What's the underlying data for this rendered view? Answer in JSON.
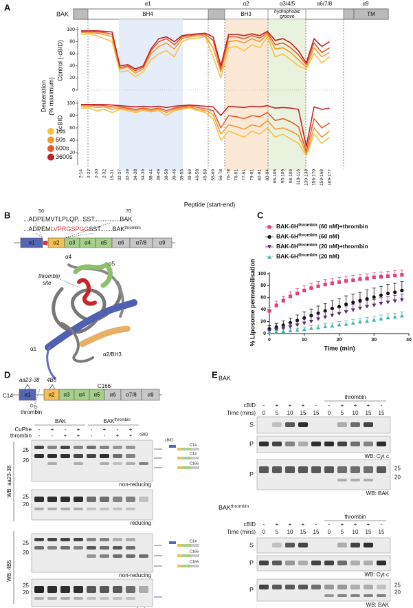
{
  "chart_data": [
    {
      "type": "line",
      "ylabel": "Control (-cBID)",
      "ylim": [
        0,
        100
      ],
      "yticks": [
        0,
        20,
        40,
        60,
        80,
        100
      ],
      "series": [
        {
          "color": "#f6c244",
          "values": [
            92,
            93,
            90,
            85,
            80,
            30,
            32,
            22,
            30,
            50,
            60,
            65,
            55,
            80,
            85,
            86,
            88,
            55,
            20,
            70,
            72,
            65,
            75,
            70,
            88,
            55,
            60,
            50,
            40,
            35,
            60,
            45,
            55
          ]
        },
        {
          "color": "#f49a30",
          "values": [
            95,
            95,
            94,
            92,
            88,
            35,
            38,
            28,
            35,
            60,
            72,
            78,
            68,
            85,
            88,
            90,
            90,
            70,
            30,
            80,
            82,
            78,
            85,
            80,
            92,
            68,
            70,
            62,
            50,
            38,
            70,
            55,
            62
          ]
        },
        {
          "color": "#e85a28",
          "values": [
            97,
            97,
            96,
            95,
            92,
            37,
            40,
            32,
            38,
            65,
            80,
            85,
            75,
            88,
            90,
            92,
            92,
            82,
            35,
            88,
            88,
            85,
            90,
            86,
            95,
            75,
            78,
            70,
            58,
            42,
            78,
            62,
            70
          ]
        },
        {
          "color": "#c21f26",
          "values": [
            98,
            98,
            98,
            97,
            96,
            40,
            42,
            35,
            40,
            68,
            85,
            88,
            80,
            90,
            92,
            93,
            94,
            88,
            40,
            92,
            92,
            90,
            93,
            90,
            97,
            82,
            85,
            78,
            65,
            45,
            85,
            72,
            80
          ]
        }
      ]
    },
    {
      "type": "line",
      "ylabel": "+cBID",
      "xlabel": "Peptide (start-end)",
      "ylim": [
        0,
        100
      ],
      "yticks": [
        20,
        40,
        60,
        80,
        100
      ],
      "categories": [
        "2-14",
        "2-22",
        "2-30",
        "2-32",
        "15-31",
        "32-37",
        "32-39",
        "34-38",
        "34-39",
        "38-44",
        "38-49",
        "38-58",
        "39-46",
        "39-55",
        "39-69",
        "40-58",
        "45-58",
        "55-69",
        "56-78",
        "70-78",
        "76-91",
        "77-91",
        "79-81",
        "82-91",
        "83-94",
        "95-105",
        "95-109",
        "98-109",
        "110-116",
        "130-138",
        "156-170",
        "159-168",
        "169-177"
      ],
      "series": [
        {
          "name": "10s",
          "color": "#f6c244",
          "values": [
            92,
            92,
            88,
            90,
            85,
            90,
            88,
            85,
            88,
            86,
            88,
            80,
            88,
            90,
            92,
            88,
            85,
            75,
            40,
            55,
            50,
            45,
            55,
            50,
            60,
            45,
            50,
            42,
            35,
            15,
            50,
            35,
            45
          ]
        },
        {
          "name": "60s",
          "color": "#f49a30",
          "values": [
            95,
            95,
            93,
            94,
            90,
            92,
            90,
            88,
            90,
            88,
            90,
            85,
            90,
            92,
            94,
            90,
            88,
            82,
            50,
            65,
            62,
            58,
            65,
            62,
            72,
            58,
            60,
            55,
            48,
            18,
            60,
            45,
            55
          ]
        },
        {
          "name": "600s",
          "color": "#e85a28",
          "values": [
            97,
            97,
            96,
            96,
            94,
            94,
            92,
            90,
            92,
            90,
            92,
            88,
            92,
            94,
            96,
            93,
            91,
            88,
            60,
            80,
            78,
            75,
            80,
            78,
            85,
            72,
            75,
            70,
            62,
            22,
            75,
            60,
            68
          ]
        },
        {
          "name": "3600s",
          "color": "#c21f26",
          "values": [
            98,
            98,
            98,
            98,
            97,
            96,
            95,
            94,
            95,
            94,
            95,
            93,
            95,
            96,
            97,
            96,
            95,
            94,
            80,
            95,
            94,
            93,
            95,
            94,
            96,
            92,
            93,
            92,
            90,
            30,
            94,
            90,
            92
          ]
        }
      ]
    },
    {
      "type": "line",
      "xlabel": "Time (min)",
      "ylabel": "% Liposome permeabilisation",
      "xlim": [
        0,
        40
      ],
      "xticks": [
        0,
        10,
        20,
        30,
        40
      ],
      "ylim": [
        0,
        100
      ],
      "yticks": [
        0,
        20,
        40,
        60,
        80,
        100
      ],
      "x": [
        0,
        2,
        4,
        6,
        8,
        10,
        12,
        14,
        16,
        18,
        20,
        22,
        24,
        26,
        28,
        30,
        32,
        34,
        36,
        38
      ],
      "series": [
        {
          "name": "BAK-6H",
          "name_sup": "thrombin",
          "name_suffix": " (60 nM)+thrombin",
          "color": "#e0407f",
          "marker": "square",
          "values": [
            38,
            47,
            55,
            62,
            67,
            72,
            76,
            79,
            82,
            84,
            86,
            88,
            89,
            91,
            92,
            94,
            95,
            96,
            97,
            98
          ],
          "errors": [
            6,
            7,
            7,
            8,
            8,
            8,
            8,
            8,
            8,
            8,
            8,
            8,
            8,
            8,
            8,
            8,
            8,
            8,
            8,
            8
          ]
        },
        {
          "name": "BAK-6H",
          "name_sup": "thrombin",
          "name_suffix": " (60 nM)",
          "color": "#111111",
          "marker": "circle",
          "values": [
            8,
            11,
            14,
            18,
            22,
            26,
            30,
            34,
            38,
            42,
            45,
            49,
            52,
            55,
            58,
            61,
            64,
            67,
            69,
            72
          ],
          "errors": [
            5,
            6,
            7,
            8,
            9,
            10,
            11,
            12,
            12,
            13,
            13,
            14,
            14,
            14,
            15,
            15,
            15,
            15,
            15,
            15
          ]
        },
        {
          "name": "BAK-6H",
          "name_sup": "thrombin",
          "name_suffix": " (20 nM)+thrombin",
          "color": "#5a2a78",
          "marker": "triangle-down",
          "values": [
            4,
            6,
            8,
            11,
            14,
            17,
            20,
            24,
            27,
            30,
            33,
            36,
            39,
            42,
            45,
            47,
            50,
            52,
            54,
            56
          ],
          "errors": [
            3,
            4,
            5,
            6,
            7,
            8,
            8,
            9,
            9,
            10,
            10,
            10,
            10,
            10,
            10,
            10,
            10,
            10,
            10,
            10
          ]
        },
        {
          "name": "BAK-6H",
          "name_sup": "thrombin",
          "name_suffix": " (20 nM)",
          "color": "#40b8a8",
          "marker": "triangle-up",
          "values": [
            2,
            3,
            4,
            5,
            6,
            7,
            9,
            10,
            12,
            13,
            15,
            16,
            18,
            20,
            21,
            23,
            25,
            27,
            28,
            30
          ],
          "errors": [
            2,
            2,
            3,
            3,
            3,
            4,
            4,
            4,
            5,
            5,
            5,
            5,
            6,
            6,
            6,
            6,
            6,
            6,
            6,
            6
          ]
        }
      ]
    }
  ],
  "panels": {
    "A": {
      "label": "A",
      "protein": "BAK",
      "helices": [
        "α1",
        "α2",
        "α3/4/5",
        "α6/7/8",
        "α9"
      ],
      "regions": [
        "BH4",
        "BH3",
        "hydrophobic",
        "groove",
        "TM"
      ],
      "ylabel": [
        "Deuteration",
        "(% maximum)"
      ]
    },
    "B": {
      "label": "B",
      "pos_start": "56",
      "pos_end": "70",
      "seq1": "...ADPEMVTLPLQP...SST...............BAK",
      "seq2_pre": "...ADPEM",
      "seq2_insert": "LVPRGSPGG",
      "seq2_post": "SST.......BAK",
      "seq2_sup": "thrombin",
      "domains": [
        "α1",
        "α2",
        "α3",
        "α4",
        "α5",
        "α6",
        "α7/8",
        "α9"
      ],
      "structure_labels": [
        "α4",
        "α5",
        "thrombin",
        "site",
        "α1",
        "α2/BH3"
      ]
    },
    "C": {
      "label": "C"
    },
    "D": {
      "label": "D",
      "c14": "C14",
      "c166": "C166",
      "epitopes": [
        "aa23-38",
        "4B5"
      ],
      "cleave": "thrombin",
      "domains": [
        "α1",
        "α2",
        "α3",
        "α4",
        "α5",
        "α6",
        "α7/8",
        "α9"
      ],
      "groups": [
        {
          "title": "BAK"
        },
        {
          "title": "BAK",
          "title_sup": "thrombin"
        }
      ],
      "rows": [
        {
          "name": "CuPhe",
          "signs": [
            "-",
            "+",
            "-",
            "+",
            "-",
            "+",
            "-",
            "+"
          ]
        },
        {
          "name": "thrombin",
          "signs": [
            "-",
            "-",
            "+",
            "+",
            "-",
            "-",
            "+",
            "+"
          ]
        }
      ],
      "cbid": "cBID",
      "blot_labels": [
        "non-reducing",
        "reducing",
        "non-reducing",
        "reducing"
      ],
      "wb": [
        "WB: aa23-38",
        "WB: 4B5"
      ],
      "mw": [
        "25",
        "20"
      ]
    },
    "E": {
      "label": "E",
      "groups": [
        {
          "title": "BAK",
          "thrombin": "thrombin",
          "rows": [
            {
              "name": "cBID",
              "signs": [
                "-",
                "+",
                "+",
                "+",
                "-",
                "-",
                "+",
                "+",
                "+",
                "-"
              ]
            },
            {
              "name": "Time (mins)",
              "signs": [
                "0",
                "5",
                "10",
                "15",
                "15",
                "0",
                "5",
                "10",
                "15",
                "15"
              ]
            }
          ],
          "lanes": [
            "S",
            "P",
            "P"
          ],
          "wb": [
            "WB: Cyt c",
            "WB: BAK"
          ],
          "mw": [
            "25",
            "20"
          ]
        },
        {
          "title": "BAK",
          "title_sup": "thrombin",
          "thrombin": "thrombin",
          "rows": [
            {
              "name": "cBID",
              "signs": [
                "-",
                "+",
                "+",
                "+",
                "-",
                "-",
                "+",
                "+",
                "+",
                "-"
              ]
            },
            {
              "name": "Time (mins)",
              "signs": [
                "0",
                "5",
                "10",
                "15",
                "15",
                "0",
                "5",
                "10",
                "15",
                "15"
              ]
            }
          ],
          "lanes": [
            "S",
            "P",
            "P"
          ],
          "wb": [
            "WB: Cyt c",
            "WB: BAK"
          ],
          "mw": [
            "25",
            "20"
          ]
        }
      ]
    }
  }
}
